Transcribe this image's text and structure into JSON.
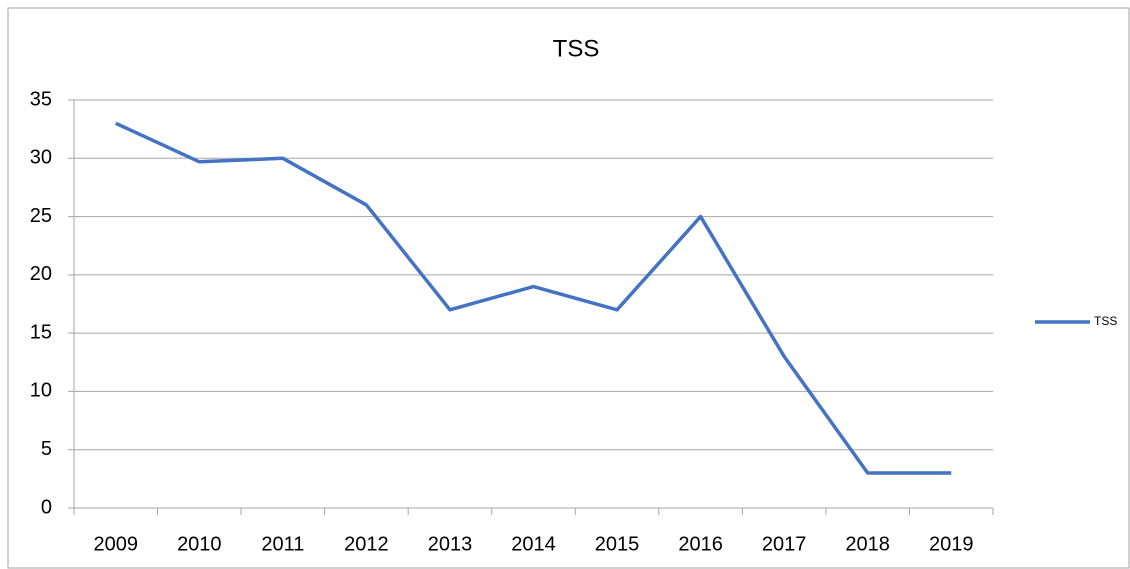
{
  "chart_data": {
    "type": "line",
    "title": "TSS",
    "categories": [
      "2009",
      "2010",
      "2011",
      "2012",
      "2013",
      "2014",
      "2015",
      "2016",
      "2017",
      "2018",
      "2019"
    ],
    "series": [
      {
        "name": "TSS",
        "color": "#4472c4",
        "values": [
          33,
          29.7,
          30,
          26,
          17,
          19,
          17,
          25,
          13,
          3,
          3
        ]
      }
    ],
    "ylim": [
      0,
      35
    ],
    "yticks": [
      0,
      5,
      10,
      15,
      20,
      25,
      30,
      35
    ],
    "grid": true,
    "legend": "right"
  }
}
